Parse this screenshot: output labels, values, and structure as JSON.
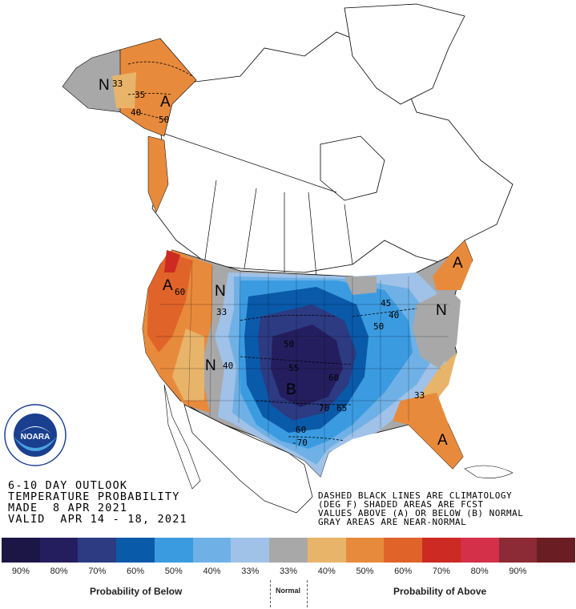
{
  "header": {
    "line1": "6-10 DAY OUTLOOK",
    "line2": "TEMPERATURE PROBABILITY",
    "line3": "MADE  8 APR 2021",
    "line4": "VALID  APR 14 - 18, 2021"
  },
  "notes": {
    "line1": "DASHED BLACK LINES ARE CLIMATOLOGY",
    "line2": "(DEG F) SHADED AREAS ARE FCST",
    "line3": "VALUES ABOVE (A) OR BELOW (B) NORMAL",
    "line4": "GRAY AREAS ARE NEAR-NORMAL"
  },
  "logo": {
    "text": "NOARA"
  },
  "map_labels": {
    "alaska_n": "N",
    "alaska_a": "A",
    "west_a": "A",
    "west_n": "N",
    "intermountain_n": "N",
    "central_b": "B",
    "northeast_n": "N",
    "northeast_a": "A",
    "southeast_a": "A",
    "c_33_ak": "33",
    "c_35_ak": "35",
    "c_40_ak": "40",
    "c_50_ak": "50",
    "c_60_w": "60",
    "c_33_w": "33",
    "c_40_w": "40",
    "c_50_c": "50",
    "c_55_c": "55",
    "c_60_c": "60",
    "c_60_s": "60",
    "c_70_s": "70",
    "c_65_s": "65",
    "c_70_tx": "-70",
    "c_40_ne": "40",
    "c_45_ne": "45",
    "c_50_ne": "50",
    "c_33_se": "33"
  },
  "legend": {
    "colors": [
      "#1c1646",
      "#251e5e",
      "#2c3b82",
      "#0a5aaa",
      "#3b9be0",
      "#6fb1e6",
      "#a0c2e8",
      "#a8a8a8",
      "#e8b46a",
      "#e88a3c",
      "#e0632a",
      "#cc2a22",
      "#d4304a",
      "#8c2a36",
      "#6a1e24"
    ],
    "labels": [
      "90%",
      "80%",
      "70%",
      "60%",
      "50%",
      "40%",
      "33%",
      "33%",
      "40%",
      "50%",
      "60%",
      "70%",
      "80%",
      "90%"
    ],
    "below_title": "Probability of Below",
    "normal_title": "Normal",
    "above_title": "Probability of Above"
  }
}
